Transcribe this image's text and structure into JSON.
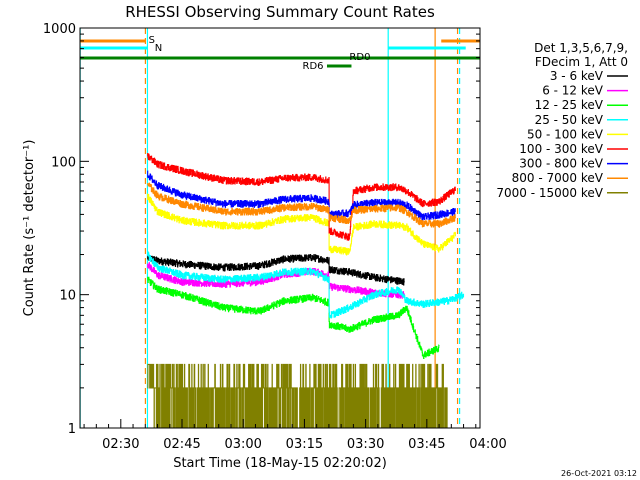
{
  "chart_data": {
    "type": "line",
    "title": "RHESSI Observing Summary Count Rates",
    "xlabel": "Start Time (18-May-15 02:20:02)",
    "ylabel": "Count Rate (s⁻¹ detector⁻¹)",
    "yscale": "log",
    "ylim": [
      1,
      1000
    ],
    "xlim_minutes": [
      -0.03,
      98.0
    ],
    "yticks": [
      "1",
      "10",
      "100",
      "1000"
    ],
    "xticks": [
      {
        "label": "02:30",
        "minute": 9.97
      },
      {
        "label": "02:45",
        "minute": 24.97
      },
      {
        "label": "03:00",
        "minute": 39.97
      },
      {
        "label": "03:15",
        "minute": 54.97
      },
      {
        "label": "03:30",
        "minute": 69.97
      },
      {
        "label": "03:45",
        "minute": 84.97
      },
      {
        "label": "04:00",
        "minute": 99.97
      }
    ],
    "legend_header": [
      "Det 1,3,5,6,7,9,",
      "FDecim 1, Att 0"
    ],
    "legend_position": "right",
    "footer": "26-Oct-2021 03:12",
    "series": [
      {
        "name": "3 - 6 keV",
        "color": "#000000",
        "points": [
          [
            16.5,
            19
          ],
          [
            19,
            18
          ],
          [
            25,
            17
          ],
          [
            35,
            16
          ],
          [
            44,
            16.5
          ],
          [
            50,
            18.5
          ],
          [
            57,
            19
          ],
          [
            61,
            18
          ],
          [
            61.3,
            15.5
          ],
          [
            66,
            14.8
          ],
          [
            72,
            13.5
          ],
          [
            78,
            12.7
          ],
          [
            79.5,
            12.5
          ]
        ]
      },
      {
        "name": "6 - 12 keV",
        "color": "#ff00ff",
        "points": [
          [
            16.5,
            17
          ],
          [
            19,
            14
          ],
          [
            25,
            12.5
          ],
          [
            35,
            12
          ],
          [
            44,
            12.5
          ],
          [
            50,
            14.2
          ],
          [
            57,
            15
          ],
          [
            61,
            14
          ],
          [
            61.3,
            11.5
          ],
          [
            66,
            11
          ],
          [
            72,
            10.4
          ],
          [
            78,
            10
          ],
          [
            79.5,
            10
          ]
        ]
      },
      {
        "name": "12 - 25 keV",
        "color": "#00ff00",
        "points": [
          [
            16.5,
            13
          ],
          [
            19,
            11
          ],
          [
            25,
            10
          ],
          [
            35,
            8
          ],
          [
            44,
            7.5
          ],
          [
            50,
            9
          ],
          [
            57,
            9.5
          ],
          [
            61,
            8.7
          ],
          [
            61.3,
            6
          ],
          [
            66,
            5.5
          ],
          [
            72,
            6.5
          ],
          [
            78,
            7
          ],
          [
            80,
            8
          ],
          [
            84,
            3.5
          ],
          [
            88,
            4
          ]
        ]
      },
      {
        "name": "25 - 50 keV",
        "color": "#00ffff",
        "points": [
          [
            16.5,
            20
          ],
          [
            19,
            16
          ],
          [
            25,
            14
          ],
          [
            35,
            13
          ],
          [
            44,
            13.5
          ],
          [
            50,
            14.8
          ],
          [
            57,
            15
          ],
          [
            61,
            13
          ],
          [
            61.3,
            7
          ],
          [
            66,
            8
          ],
          [
            72,
            10
          ],
          [
            78,
            11
          ],
          [
            80,
            9
          ],
          [
            84,
            8.5
          ],
          [
            90,
            9
          ],
          [
            93,
            9.7
          ],
          [
            94,
            10
          ]
        ]
      },
      {
        "name": "50 - 100 keV",
        "color": "#ffff00",
        "points": [
          [
            16.5,
            55
          ],
          [
            19,
            42
          ],
          [
            25,
            36
          ],
          [
            35,
            33
          ],
          [
            44,
            33
          ],
          [
            50,
            37
          ],
          [
            57,
            38
          ],
          [
            61,
            34
          ],
          [
            61.3,
            22
          ],
          [
            66,
            21
          ],
          [
            67,
            32
          ],
          [
            72,
            34
          ],
          [
            78,
            33
          ],
          [
            80,
            32
          ],
          [
            84,
            24
          ],
          [
            88,
            22
          ],
          [
            92,
            28
          ]
        ]
      },
      {
        "name": "100 - 300 keV",
        "color": "#ff0000",
        "points": [
          [
            16.5,
            110
          ],
          [
            19,
            95
          ],
          [
            25,
            85
          ],
          [
            35,
            72
          ],
          [
            44,
            70
          ],
          [
            50,
            75
          ],
          [
            57,
            76
          ],
          [
            61,
            72
          ],
          [
            61.3,
            30
          ],
          [
            66,
            27
          ],
          [
            67,
            60
          ],
          [
            72,
            64
          ],
          [
            78,
            64
          ],
          [
            80,
            60
          ],
          [
            84,
            48
          ],
          [
            88,
            50
          ],
          [
            92,
            62
          ]
        ]
      },
      {
        "name": "300 - 800 keV",
        "color": "#0000ff",
        "points": [
          [
            16.5,
            80
          ],
          [
            19,
            66
          ],
          [
            25,
            56
          ],
          [
            35,
            48
          ],
          [
            44,
            48
          ],
          [
            50,
            52
          ],
          [
            57,
            53
          ],
          [
            61,
            50
          ],
          [
            61.3,
            40
          ],
          [
            66,
            41
          ],
          [
            67,
            47
          ],
          [
            72,
            49
          ],
          [
            78,
            49
          ],
          [
            80,
            47
          ],
          [
            84,
            38
          ],
          [
            88,
            40
          ],
          [
            92,
            42
          ]
        ]
      },
      {
        "name": "800 - 7000 keV",
        "color": "#ff8800",
        "points": [
          [
            16.5,
            68
          ],
          [
            19,
            55
          ],
          [
            25,
            48
          ],
          [
            35,
            42
          ],
          [
            44,
            42
          ],
          [
            50,
            45
          ],
          [
            57,
            46
          ],
          [
            61,
            43
          ],
          [
            61.3,
            38
          ],
          [
            66,
            36
          ],
          [
            67,
            43
          ],
          [
            72,
            44
          ],
          [
            78,
            45
          ],
          [
            80,
            42
          ],
          [
            84,
            34
          ],
          [
            88,
            34
          ],
          [
            92,
            38
          ]
        ]
      },
      {
        "name": "7000 - 15000 keV",
        "color": "#808000",
        "points": [
          [
            16.5,
            3
          ],
          [
            19,
            2
          ],
          [
            25,
            1.6
          ],
          [
            35,
            1.6
          ],
          [
            44,
            1.4
          ],
          [
            50,
            1.5
          ],
          [
            57,
            1.5
          ],
          [
            61,
            1.4
          ],
          [
            66,
            1.4
          ],
          [
            72,
            1.6
          ],
          [
            78,
            1.5
          ],
          [
            84,
            1.5
          ],
          [
            90,
            1.4
          ]
        ]
      }
    ],
    "flags": [
      {
        "label": "S",
        "color": "#ff8800"
      },
      {
        "label": "N",
        "color": "#00ffff"
      },
      {
        "label": "RD0",
        "color": "#008000"
      },
      {
        "label": "RD6",
        "color": "#008000"
      }
    ]
  }
}
